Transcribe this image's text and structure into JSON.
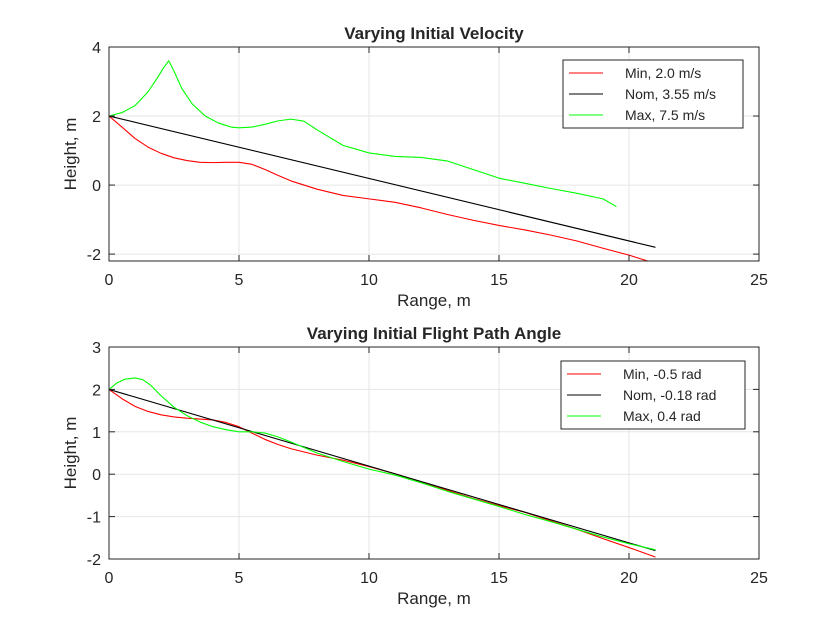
{
  "chart_data": [
    {
      "type": "line",
      "title": "Varying Initial Velocity",
      "xlabel": "Range, m",
      "ylabel": "Height, m",
      "xlim": [
        0,
        25
      ],
      "ylim": [
        -2.2,
        4
      ],
      "xticks": [
        "0",
        "5",
        "10",
        "15",
        "20",
        "25"
      ],
      "yticks": [
        "-2",
        "0",
        "2",
        "4"
      ],
      "grid": true,
      "legend_position": "top-right",
      "series": [
        {
          "name": "Min, 2.0 m/s",
          "color": "#ff0000",
          "x": [
            0,
            0.5,
            1,
            1.5,
            2,
            2.5,
            3,
            3.5,
            4,
            4.5,
            5,
            5.5,
            6,
            6.5,
            7,
            8,
            9,
            10,
            11,
            12,
            13,
            14,
            15,
            16,
            17,
            18,
            19,
            20,
            20.5,
            20.9
          ],
          "y": [
            2.0,
            1.68,
            1.35,
            1.1,
            0.92,
            0.79,
            0.71,
            0.66,
            0.65,
            0.66,
            0.66,
            0.6,
            0.45,
            0.28,
            0.12,
            -0.12,
            -0.3,
            -0.4,
            -0.5,
            -0.66,
            -0.85,
            -1.02,
            -1.17,
            -1.3,
            -1.45,
            -1.62,
            -1.83,
            -2.03,
            -2.15,
            -2.24
          ]
        },
        {
          "name": "Nom, 3.55 m/s",
          "color": "#000000",
          "x": [
            0,
            21
          ],
          "y": [
            2.0,
            -1.8
          ]
        },
        {
          "name": "Max, 7.5 m/s",
          "color": "#00ff00",
          "x": [
            0,
            0.5,
            1,
            1.5,
            1.9,
            2.1,
            2.3,
            2.5,
            2.8,
            3.2,
            3.7,
            4.2,
            4.7,
            5,
            5.5,
            6,
            6.5,
            7,
            7.5,
            8,
            9,
            10,
            11,
            12,
            13,
            14,
            15,
            16,
            17,
            18,
            19,
            19.5
          ],
          "y": [
            2.0,
            2.1,
            2.3,
            2.7,
            3.15,
            3.4,
            3.6,
            3.3,
            2.8,
            2.35,
            2.0,
            1.8,
            1.68,
            1.66,
            1.68,
            1.76,
            1.86,
            1.91,
            1.85,
            1.6,
            1.15,
            0.93,
            0.83,
            0.8,
            0.7,
            0.45,
            0.2,
            0.05,
            -0.1,
            -0.24,
            -0.4,
            -0.62
          ]
        }
      ]
    },
    {
      "type": "line",
      "title": "Varying Initial Flight Path Angle",
      "xlabel": "Range, m",
      "ylabel": "Height, m",
      "xlim": [
        0,
        25
      ],
      "ylim": [
        -2,
        3
      ],
      "xticks": [
        "0",
        "5",
        "10",
        "15",
        "20",
        "25"
      ],
      "yticks": [
        "-2",
        "-1",
        "0",
        "1",
        "2",
        "3"
      ],
      "grid": true,
      "legend_position": "top-right",
      "series": [
        {
          "name": "Min, -0.5 rad",
          "color": "#ff0000",
          "x": [
            0,
            0.5,
            1,
            1.5,
            2,
            2.5,
            3,
            3.5,
            4,
            4.5,
            5,
            5.5,
            6,
            6.5,
            7,
            8,
            9,
            10,
            11,
            12,
            13,
            14,
            15,
            16,
            17,
            18,
            19,
            20,
            21
          ],
          "y": [
            2.0,
            1.78,
            1.6,
            1.48,
            1.4,
            1.35,
            1.32,
            1.3,
            1.28,
            1.22,
            1.12,
            0.97,
            0.82,
            0.7,
            0.6,
            0.45,
            0.33,
            0.18,
            0.01,
            -0.18,
            -0.38,
            -0.57,
            -0.74,
            -0.9,
            -1.1,
            -1.3,
            -1.52,
            -1.73,
            -1.95
          ]
        },
        {
          "name": "Nom, -0.18 rad",
          "color": "#000000",
          "x": [
            0,
            21
          ],
          "y": [
            2.0,
            -1.8
          ]
        },
        {
          "name": "Max, 0.4 rad",
          "color": "#00ff00",
          "x": [
            0,
            0.3,
            0.6,
            1,
            1.3,
            1.6,
            2,
            2.5,
            3,
            3.5,
            4,
            4.5,
            5,
            5.5,
            6,
            6.5,
            7,
            8,
            9,
            10,
            11,
            12,
            13,
            14,
            15,
            16,
            17,
            18,
            19,
            20,
            21
          ],
          "y": [
            2.0,
            2.15,
            2.24,
            2.27,
            2.23,
            2.1,
            1.85,
            1.58,
            1.38,
            1.23,
            1.12,
            1.05,
            1.0,
            1.0,
            0.97,
            0.88,
            0.76,
            0.5,
            0.3,
            0.12,
            -0.02,
            -0.2,
            -0.4,
            -0.58,
            -0.76,
            -0.95,
            -1.12,
            -1.3,
            -1.48,
            -1.64,
            -1.78
          ]
        }
      ]
    }
  ]
}
